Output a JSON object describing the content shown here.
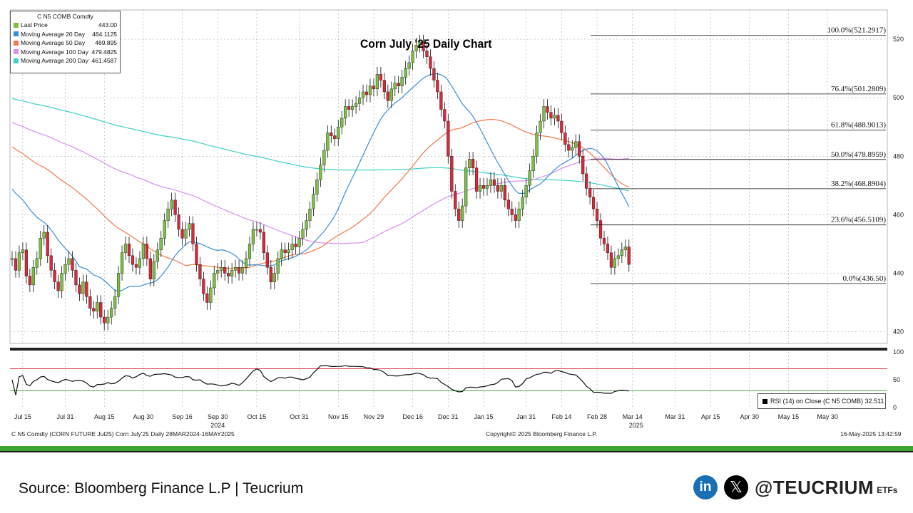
{
  "chart_data": {
    "type": "candlestick",
    "title": "Corn July '25 Daily Chart",
    "security": "C N5 COMB Comdty",
    "ylim": [
      416,
      530
    ],
    "y_ticks": [
      420,
      440,
      460,
      480,
      500,
      520
    ],
    "x_ticks": [
      {
        "label": "Jul 15",
        "i": 3
      },
      {
        "label": "Jul 31",
        "i": 15
      },
      {
        "label": "Aug 15",
        "i": 26
      },
      {
        "label": "Aug 30",
        "i": 37
      },
      {
        "label": "Sep 16",
        "i": 48
      },
      {
        "label": "Sep 30",
        "i": 58
      },
      {
        "label": "Oct 15",
        "i": 69
      },
      {
        "label": "Oct 31",
        "i": 81
      },
      {
        "label": "Nov 15",
        "i": 92
      },
      {
        "label": "Nov 29",
        "i": 102
      },
      {
        "label": "Dec 16",
        "i": 113
      },
      {
        "label": "Dec 31",
        "i": 123
      },
      {
        "label": "Jan 15",
        "i": 133
      },
      {
        "label": "Jan 31",
        "i": 145
      },
      {
        "label": "Feb 14",
        "i": 155
      },
      {
        "label": "Feb 28",
        "i": 165
      },
      {
        "label": "Mar 14",
        "i": 175
      },
      {
        "label": "Mar 31",
        "i": 187
      },
      {
        "label": "Apr 15",
        "i": 197
      },
      {
        "label": "Apr 30",
        "i": 208
      },
      {
        "label": "May 15",
        "i": 219
      },
      {
        "label": "May 30",
        "i": 230
      }
    ],
    "year_labels": [
      {
        "label": "2024",
        "i": 58
      },
      {
        "label": "2025",
        "i": 176
      }
    ],
    "n_slots": 236,
    "closes": [
      445,
      441,
      447,
      448,
      439,
      436,
      442,
      445,
      452,
      454,
      446,
      441,
      437,
      434,
      440,
      443,
      445,
      441,
      436,
      433,
      437,
      432,
      428,
      427,
      430,
      425,
      423,
      425,
      428,
      432,
      440,
      447,
      450,
      446,
      443,
      442,
      445,
      450,
      445,
      438,
      444,
      448,
      452,
      458,
      462,
      465,
      460,
      455,
      452,
      455,
      457,
      450,
      443,
      438,
      433,
      430,
      435,
      440,
      441,
      442,
      440,
      439,
      441,
      442,
      440,
      442,
      445,
      450,
      455,
      455,
      454,
      447,
      442,
      437,
      440,
      445,
      448,
      447,
      448,
      450,
      449,
      452,
      455,
      458,
      462,
      467,
      472,
      477,
      482,
      488,
      487,
      486,
      490,
      493,
      497,
      496,
      497,
      498,
      500,
      502,
      501,
      504,
      503,
      508,
      506,
      502,
      499,
      503,
      505,
      504,
      507,
      510,
      512,
      516,
      518,
      519,
      516,
      514,
      510,
      506,
      502,
      496,
      492,
      480,
      468,
      462,
      458,
      463,
      476,
      479,
      476,
      468,
      470,
      469,
      470,
      472,
      470,
      468,
      470,
      465,
      462,
      460,
      458,
      462,
      466,
      470,
      475,
      480,
      488,
      492,
      497,
      495,
      493,
      494,
      492,
      488,
      484,
      482,
      483,
      485,
      480,
      474,
      469,
      466,
      462,
      458,
      452,
      450,
      447,
      442,
      445,
      446,
      448,
      449,
      443
    ],
    "opens": [
      445,
      445,
      441,
      447,
      448,
      439,
      436,
      442,
      445,
      452,
      454,
      446,
      441,
      437,
      434,
      440,
      443,
      445,
      441,
      436,
      433,
      437,
      432,
      428,
      427,
      430,
      425,
      423,
      425,
      428,
      432,
      440,
      447,
      450,
      446,
      443,
      442,
      445,
      450,
      445,
      438,
      444,
      448,
      452,
      458,
      462,
      465,
      460,
      455,
      452,
      455,
      457,
      450,
      443,
      438,
      433,
      430,
      435,
      440,
      441,
      442,
      440,
      439,
      441,
      442,
      440,
      442,
      445,
      450,
      455,
      455,
      454,
      447,
      442,
      437,
      440,
      445,
      448,
      447,
      448,
      450,
      449,
      452,
      455,
      458,
      462,
      467,
      472,
      477,
      482,
      488,
      487,
      486,
      490,
      493,
      497,
      496,
      497,
      498,
      500,
      502,
      501,
      504,
      503,
      508,
      506,
      502,
      499,
      503,
      505,
      504,
      507,
      510,
      512,
      516,
      518,
      519,
      516,
      514,
      510,
      506,
      502,
      496,
      492,
      480,
      468,
      462,
      458,
      463,
      476,
      479,
      476,
      468,
      470,
      469,
      470,
      472,
      470,
      468,
      470,
      465,
      462,
      460,
      458,
      462,
      466,
      470,
      475,
      480,
      488,
      492,
      497,
      495,
      493,
      494,
      492,
      488,
      484,
      482,
      483,
      485,
      480,
      474,
      469,
      466,
      462,
      458,
      452,
      450,
      447,
      442,
      445,
      446,
      448,
      449
    ],
    "fibonacci": [
      {
        "label": "100.0%(521.2917)",
        "value": 521.2917
      },
      {
        "label": "76.4%(501.2809)",
        "value": 501.2809
      },
      {
        "label": "61.8%(488.9013)",
        "value": 488.9013
      },
      {
        "label": "50.0%(478.8959)",
        "value": 478.8959
      },
      {
        "label": "38.2%(468.8904)",
        "value": 468.8904
      },
      {
        "label": "23.6%(456.5109)",
        "value": 456.5109
      },
      {
        "label": "0.0%(436.50)",
        "value": 436.5
      }
    ],
    "legend": {
      "title": "C N5 COMB Comdty",
      "items": [
        {
          "name": "Last Price",
          "value": "443.00",
          "color": "#7bc043"
        },
        {
          "name": "Moving Average 20 Day",
          "value": "464.1125",
          "color": "#3a8fd6"
        },
        {
          "name": "Moving Average 50 Day",
          "value": "469.895",
          "color": "#f07a4a"
        },
        {
          "name": "Moving Average 100 Day",
          "value": "479.4825",
          "color": "#d98ef0"
        },
        {
          "name": "Moving Average 200 Day",
          "value": "461.4587",
          "color": "#3fd0c8"
        }
      ]
    },
    "rsi": {
      "label": "RSI (14)  on Close (C N5 COMB) 32.511",
      "ticks": [
        0,
        50,
        100
      ],
      "overbought": 70,
      "oversold": 30
    },
    "colors": {
      "up": "#7bc043",
      "down": "#d9283a",
      "ma20": "#3a8fd6",
      "ma50": "#f07a4a",
      "ma100": "#d98ef0",
      "ma200": "#3fd0c8"
    }
  },
  "footer": {
    "left": "C N5 Comdty (CORN FUTURE    Jul25) Corn July'25  Daily 28MAR2024-16MAY2025",
    "center": "Copyright© 2025 Bloomberg Finance L.P.",
    "right": "16-May-2025 13:42:59"
  },
  "source": "Source: Bloomberg Finance L.P | Teucrium",
  "brand": {
    "linkedin": "in",
    "x": "𝕏",
    "handle": "@TEUCRIUM",
    "suffix": "ETFs"
  }
}
